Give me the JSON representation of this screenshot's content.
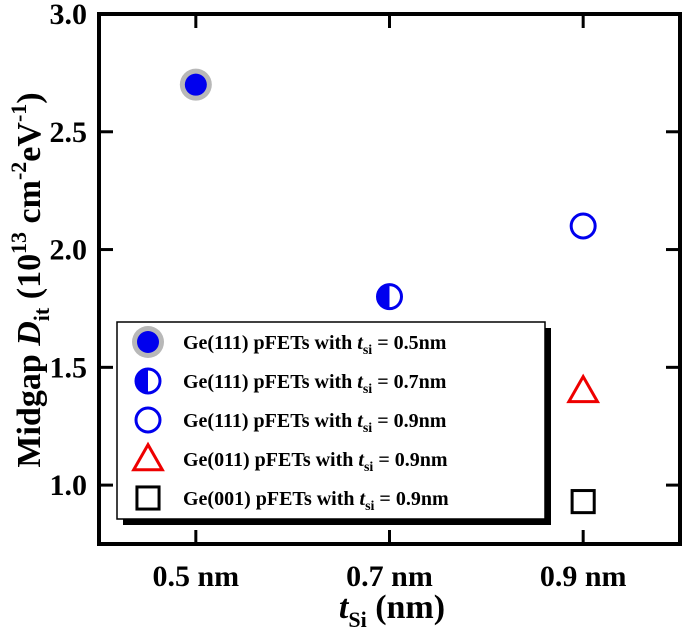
{
  "chart_data": {
    "type": "scatter",
    "xlabel": {
      "main": "t",
      "sub": "Si",
      "rest": " (nm)"
    },
    "ylabel": {
      "pre": "Midgap ",
      "var": "D",
      "sub": "it",
      "mid": " (10",
      "sup1": "13",
      "mid2": " cm",
      "sup2": "-2",
      "mid3": "eV",
      "sup3": "-1",
      "post": ")"
    },
    "x_categories": [
      "0.5 nm",
      "0.7 nm",
      "0.9 nm"
    ],
    "x_values": [
      0.5,
      0.7,
      0.9
    ],
    "xlim": [
      0.4,
      1.0
    ],
    "ylim": [
      0.75,
      3.0
    ],
    "y_ticks": [
      1.0,
      1.5,
      2.0,
      2.5,
      3.0
    ],
    "y_tick_labels": [
      "1.0",
      "1.5",
      "2.0",
      "2.5",
      "3.0"
    ],
    "grid": false,
    "legend_position": "bottom-left",
    "series": [
      {
        "name": "Ge(111) pFETs with t_si = 0.5nm",
        "legend": {
          "pre": "Ge(111) pFETs with ",
          "var": "t",
          "sub": "si",
          "post": " = 0.5nm"
        },
        "marker": "filled-circle-halo",
        "color": "#0000ee",
        "x": 0.5,
        "y": 2.7
      },
      {
        "name": "Ge(111) pFETs with t_si = 0.7nm",
        "legend": {
          "pre": "Ge(111) pFETs with ",
          "var": "t",
          "sub": "si",
          "post": " = 0.7nm"
        },
        "marker": "half-filled-circle",
        "color": "#0000ee",
        "x": 0.7,
        "y": 1.8
      },
      {
        "name": "Ge(111) pFETs with t_si = 0.9nm",
        "legend": {
          "pre": "Ge(111) pFETs with ",
          "var": "t",
          "sub": "si",
          "post": " = 0.9nm"
        },
        "marker": "open-circle",
        "color": "#0000ee",
        "x": 0.9,
        "y": 2.1
      },
      {
        "name": "Ge(011) pFETs with t_si = 0.9nm",
        "legend": {
          "pre": "Ge(011) pFETs with ",
          "var": "t",
          "sub": "si",
          "post": " = 0.9nm"
        },
        "marker": "open-triangle",
        "color": "#ee0000",
        "x": 0.9,
        "y": 1.4
      },
      {
        "name": "Ge(001) pFETs with t_si = 0.9nm",
        "legend": {
          "pre": "Ge(001) pFETs with ",
          "var": "t",
          "sub": "si",
          "post": " = 0.9nm"
        },
        "marker": "open-square",
        "color": "#000000",
        "x": 0.9,
        "y": 0.93
      }
    ]
  }
}
